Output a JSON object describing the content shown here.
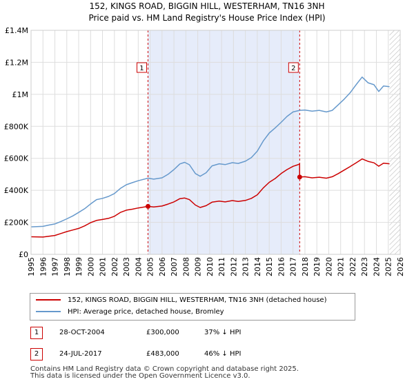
{
  "title_line1": "152, KINGS ROAD, BIGGIN HILL, WESTERHAM, TN16 3NH",
  "title_line2": "Price paid vs. HM Land Registry's House Price Index (HPI)",
  "colors": {
    "price": "#cc0000",
    "hpi": "#6699cc",
    "shade": "#e6ecfa",
    "marker": "#cc0000"
  },
  "chart_data": {
    "type": "line",
    "xlim": [
      1995,
      2026
    ],
    "ylim": [
      0,
      1400000
    ],
    "y_ticks": [
      {
        "value": 0,
        "label": "£0"
      },
      {
        "value": 200000,
        "label": "£200K"
      },
      {
        "value": 400000,
        "label": "£400K"
      },
      {
        "value": 600000,
        "label": "£600K"
      },
      {
        "value": 800000,
        "label": "£800K"
      },
      {
        "value": 1000000,
        "label": "£1M"
      },
      {
        "value": 1200000,
        "label": "£1.2M"
      },
      {
        "value": 1400000,
        "label": "£1.4M"
      }
    ],
    "x_ticks": [
      "1995",
      "1996",
      "1997",
      "1998",
      "1999",
      "2000",
      "2001",
      "2002",
      "2003",
      "2004",
      "2005",
      "2006",
      "2007",
      "2008",
      "2009",
      "2010",
      "2011",
      "2012",
      "2013",
      "2014",
      "2015",
      "2016",
      "2017",
      "2018",
      "2019",
      "2020",
      "2021",
      "2022",
      "2023",
      "2024",
      "2025",
      "2026"
    ],
    "shaded_range": [
      2004.82,
      2017.56
    ],
    "future_hatch_from": 2025.1,
    "series": [
      {
        "name": "152, KINGS ROAD, BIGGIN HILL, WESTERHAM, TN16 3NH (detached house)",
        "key": "price",
        "points": [
          [
            1995.0,
            110000
          ],
          [
            1996.0,
            108000
          ],
          [
            1997.0,
            118000
          ],
          [
            1997.5,
            130000
          ],
          [
            1998.0,
            142000
          ],
          [
            1998.5,
            152000
          ],
          [
            1999.0,
            162000
          ],
          [
            1999.5,
            178000
          ],
          [
            2000.0,
            198000
          ],
          [
            2000.5,
            212000
          ],
          [
            2001.0,
            218000
          ],
          [
            2001.5,
            225000
          ],
          [
            2002.0,
            238000
          ],
          [
            2002.5,
            262000
          ],
          [
            2003.0,
            276000
          ],
          [
            2003.5,
            282000
          ],
          [
            2004.0,
            290000
          ],
          [
            2004.82,
            300000
          ],
          [
            2005.3,
            296000
          ],
          [
            2006.0,
            302000
          ],
          [
            2006.5,
            314000
          ],
          [
            2007.0,
            328000
          ],
          [
            2007.5,
            348000
          ],
          [
            2007.9,
            352000
          ],
          [
            2008.3,
            342000
          ],
          [
            2008.8,
            308000
          ],
          [
            2009.2,
            293000
          ],
          [
            2009.7,
            304000
          ],
          [
            2010.2,
            326000
          ],
          [
            2010.8,
            333000
          ],
          [
            2011.3,
            328000
          ],
          [
            2011.9,
            336000
          ],
          [
            2012.4,
            331000
          ],
          [
            2013.0,
            337000
          ],
          [
            2013.5,
            350000
          ],
          [
            2014.0,
            372000
          ],
          [
            2014.5,
            415000
          ],
          [
            2015.0,
            450000
          ],
          [
            2015.5,
            474000
          ],
          [
            2016.0,
            505000
          ],
          [
            2016.5,
            530000
          ],
          [
            2017.0,
            550000
          ],
          [
            2017.4,
            560000
          ],
          [
            2017.55,
            565000
          ],
          [
            2017.56,
            483000
          ],
          [
            2018.0,
            485000
          ],
          [
            2018.6,
            478000
          ],
          [
            2019.2,
            482000
          ],
          [
            2019.8,
            476000
          ],
          [
            2020.3,
            485000
          ],
          [
            2020.8,
            505000
          ],
          [
            2021.3,
            527000
          ],
          [
            2021.8,
            549000
          ],
          [
            2022.3,
            572000
          ],
          [
            2022.8,
            596000
          ],
          [
            2023.3,
            581000
          ],
          [
            2023.8,
            572000
          ],
          [
            2024.2,
            551000
          ],
          [
            2024.6,
            570000
          ],
          [
            2025.1,
            566000
          ]
        ]
      },
      {
        "name": "HPI: Average price, detached house, Bromley",
        "key": "hpi",
        "points": [
          [
            1995.0,
            172000
          ],
          [
            1996.0,
            175000
          ],
          [
            1996.5,
            183000
          ],
          [
            1997.0,
            190000
          ],
          [
            1997.5,
            205000
          ],
          [
            1998.0,
            222000
          ],
          [
            1998.5,
            240000
          ],
          [
            1999.0,
            262000
          ],
          [
            1999.5,
            285000
          ],
          [
            2000.0,
            315000
          ],
          [
            2000.5,
            342000
          ],
          [
            2001.0,
            350000
          ],
          [
            2001.5,
            362000
          ],
          [
            2002.0,
            380000
          ],
          [
            2002.5,
            412000
          ],
          [
            2003.0,
            435000
          ],
          [
            2003.5,
            448000
          ],
          [
            2004.0,
            460000
          ],
          [
            2004.82,
            476000
          ],
          [
            2005.3,
            470000
          ],
          [
            2006.0,
            478000
          ],
          [
            2006.5,
            500000
          ],
          [
            2007.0,
            530000
          ],
          [
            2007.5,
            565000
          ],
          [
            2007.9,
            575000
          ],
          [
            2008.3,
            560000
          ],
          [
            2008.8,
            505000
          ],
          [
            2009.2,
            488000
          ],
          [
            2009.7,
            510000
          ],
          [
            2010.2,
            553000
          ],
          [
            2010.8,
            566000
          ],
          [
            2011.3,
            561000
          ],
          [
            2011.9,
            573000
          ],
          [
            2012.4,
            568000
          ],
          [
            2013.0,
            582000
          ],
          [
            2013.5,
            605000
          ],
          [
            2014.0,
            645000
          ],
          [
            2014.5,
            708000
          ],
          [
            2015.0,
            758000
          ],
          [
            2015.5,
            790000
          ],
          [
            2016.0,
            825000
          ],
          [
            2016.5,
            862000
          ],
          [
            2017.0,
            890000
          ],
          [
            2017.56,
            900000
          ],
          [
            2018.0,
            902000
          ],
          [
            2018.6,
            895000
          ],
          [
            2019.2,
            900000
          ],
          [
            2019.8,
            890000
          ],
          [
            2020.3,
            900000
          ],
          [
            2020.8,
            935000
          ],
          [
            2021.3,
            970000
          ],
          [
            2021.8,
            1010000
          ],
          [
            2022.3,
            1060000
          ],
          [
            2022.8,
            1108000
          ],
          [
            2023.3,
            1072000
          ],
          [
            2023.8,
            1060000
          ],
          [
            2024.2,
            1018000
          ],
          [
            2024.6,
            1052000
          ],
          [
            2025.1,
            1048000
          ]
        ]
      }
    ],
    "transactions": [
      {
        "label": "1",
        "x": 2004.82,
        "y": 300000
      },
      {
        "label": "2",
        "x": 2017.56,
        "y": 483000
      }
    ]
  },
  "legend": {
    "items": [
      {
        "label": "152, KINGS ROAD, BIGGIN HILL, WESTERHAM, TN16 3NH (detached house)"
      },
      {
        "label": "HPI: Average price, detached house, Bromley"
      }
    ]
  },
  "annotations": [
    {
      "num": "1",
      "date": "28-OCT-2004",
      "price": "£300,000",
      "hpi": "37% ↓ HPI"
    },
    {
      "num": "2",
      "date": "24-JUL-2017",
      "price": "£483,000",
      "hpi": "46% ↓ HPI"
    }
  ],
  "footer": {
    "line1": "Contains HM Land Registry data © Crown copyright and database right 2025.",
    "line2": "This data is licensed under the Open Government Licence v3.0."
  }
}
